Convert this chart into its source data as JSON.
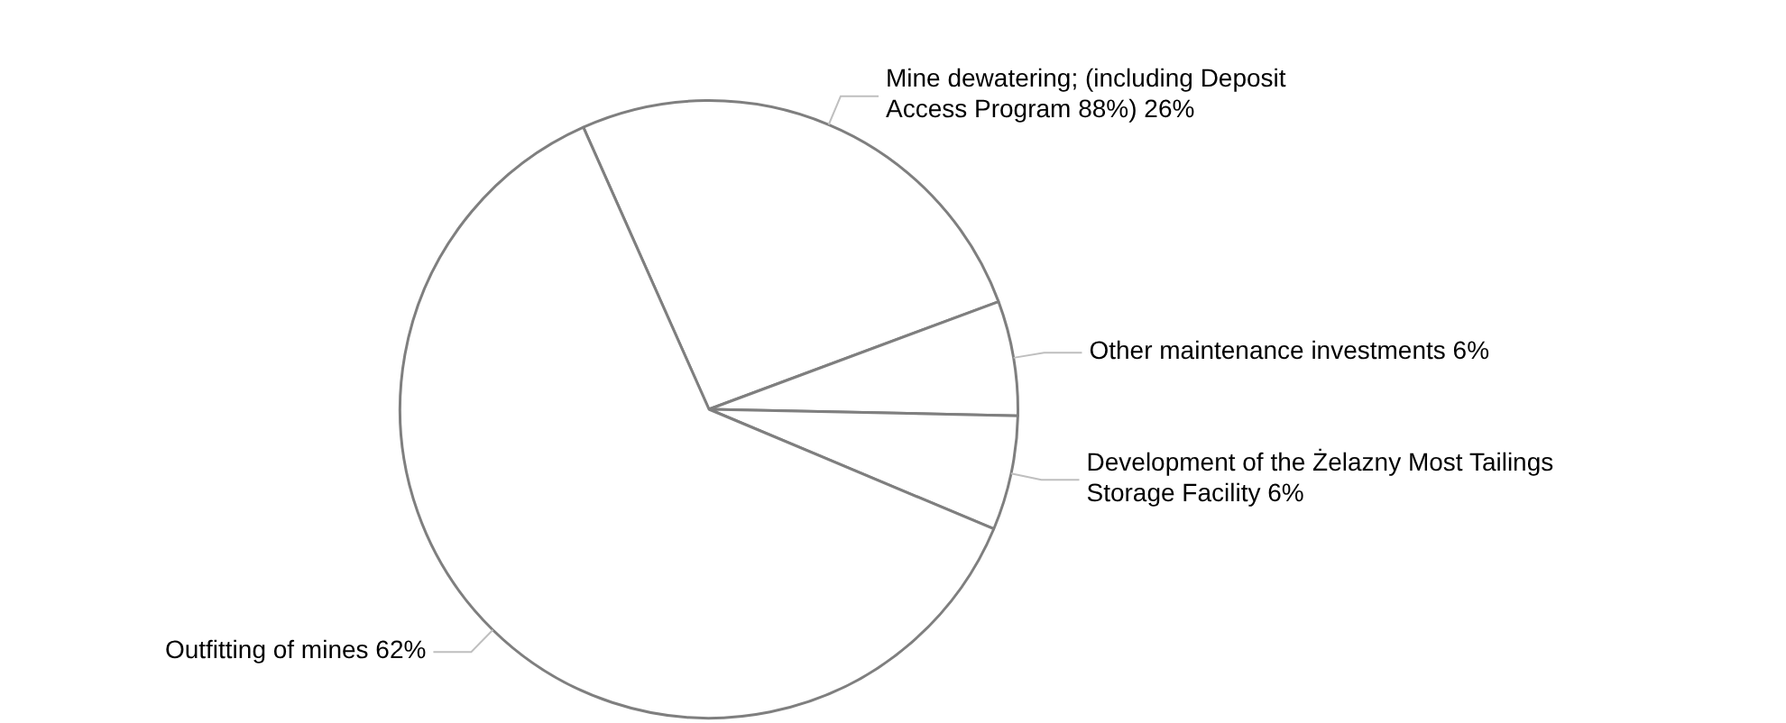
{
  "chart_data": {
    "type": "pie",
    "categories": [
      "Mine dewatering; (including Deposit Access Program 88%)",
      "Other maintenance investments",
      "Development of the Żelazny Most Tailings Storage Facility",
      "Outfitting of mines"
    ],
    "values": [
      26,
      6,
      6,
      62
    ],
    "value_labels": [
      "26%",
      "6%",
      "6%",
      "62%"
    ],
    "colors": [
      "#ffffff",
      "#ffffff",
      "#ffffff",
      "#ffffff"
    ]
  }
}
